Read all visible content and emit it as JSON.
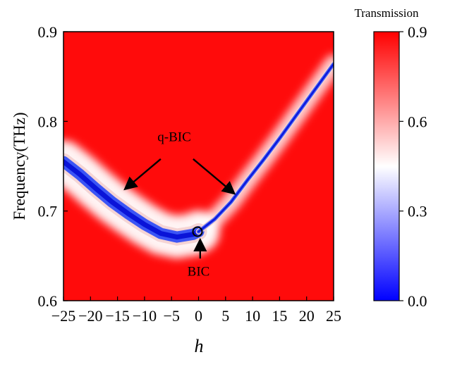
{
  "chart_data": {
    "type": "heatmap",
    "title": "",
    "xlabel": "h",
    "ylabel": "Frequency(THz)",
    "xlim": [
      -25,
      25
    ],
    "ylim": [
      0.6,
      0.9
    ],
    "x_ticks": [
      "−25",
      "−20",
      "−15",
      "−10",
      "−5",
      "0",
      "5",
      "10",
      "15",
      "20",
      "25"
    ],
    "y_ticks": [
      "0.6",
      "0.7",
      "0.8",
      "0.9"
    ],
    "colorbar": {
      "label": "Transmission",
      "range": [
        0.0,
        0.9
      ],
      "ticks": [
        "0.0",
        "0.3",
        "0.6",
        "0.9"
      ],
      "colors": {
        "low": "#0000ff",
        "mid": "#ffffff",
        "high": "#ff0000"
      }
    },
    "background_value": 0.88,
    "bands": [
      {
        "name": "left",
        "points": [
          [
            -25,
            0.755
          ],
          [
            -22,
            0.741
          ],
          [
            -19,
            0.725
          ],
          [
            -16,
            0.71
          ],
          [
            -13,
            0.697
          ],
          [
            -10,
            0.685
          ],
          [
            -7,
            0.675
          ],
          [
            -4,
            0.671
          ],
          [
            -1,
            0.674
          ],
          [
            0,
            0.677
          ]
        ]
      },
      {
        "name": "right",
        "points": [
          [
            0,
            0.677
          ],
          [
            3,
            0.691
          ],
          [
            6,
            0.71
          ],
          [
            9,
            0.734
          ],
          [
            12,
            0.757
          ],
          [
            15,
            0.781
          ],
          [
            18,
            0.806
          ],
          [
            21,
            0.831
          ],
          [
            25,
            0.864
          ]
        ]
      }
    ],
    "annotations": [
      {
        "text": "q-BIC",
        "x": -4.5,
        "y": 0.778
      },
      {
        "text": "BIC",
        "x": 0,
        "y": 0.628
      }
    ],
    "arrows": [
      {
        "from": [
          -7,
          0.758
        ],
        "to": [
          -13.5,
          0.725
        ]
      },
      {
        "from": [
          -1,
          0.758
        ],
        "to": [
          6.5,
          0.72
        ]
      },
      {
        "from": [
          0.3,
          0.647
        ],
        "to": [
          0.3,
          0.667
        ]
      }
    ],
    "marker": {
      "x": -0.2,
      "y": 0.677
    }
  }
}
